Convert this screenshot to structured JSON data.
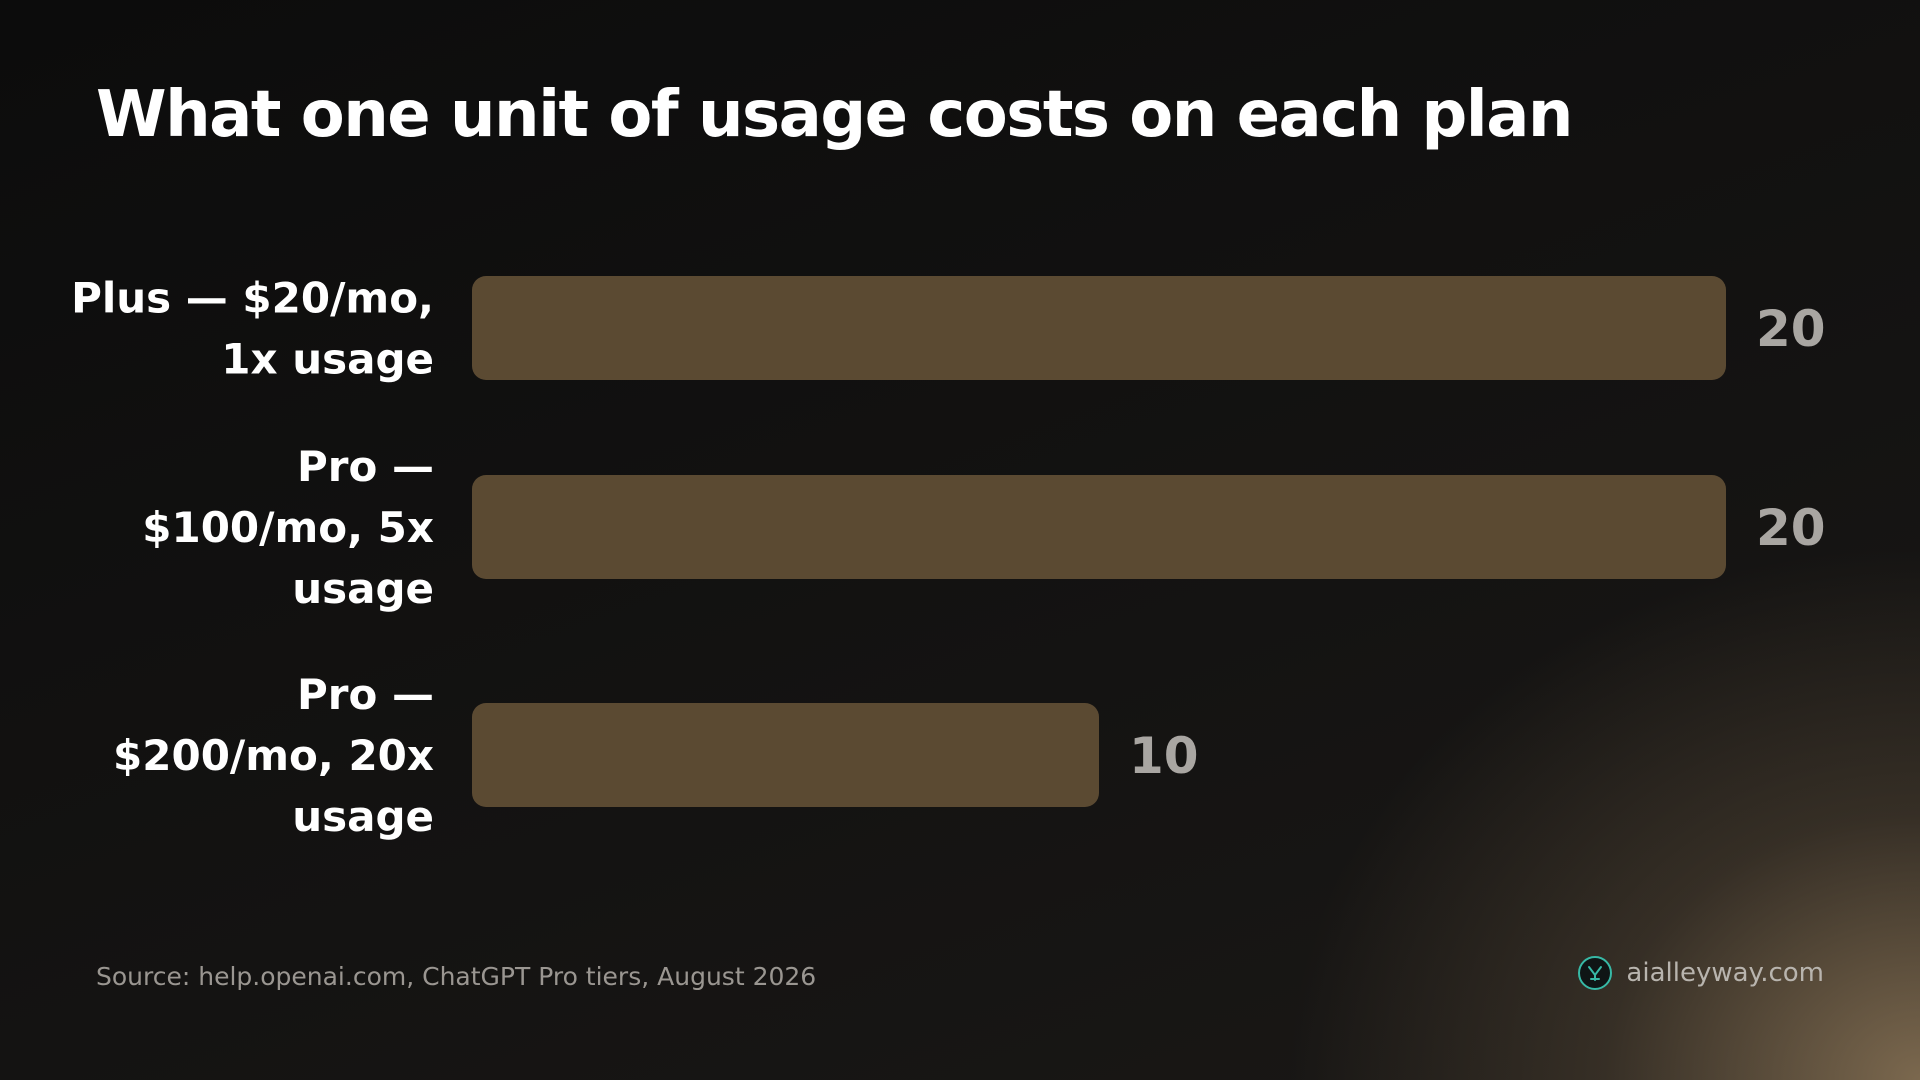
{
  "title": "What one unit of usage costs on each plan",
  "chart_data": {
    "type": "bar",
    "orientation": "horizontal",
    "categories": [
      [
        "Plus — $20/mo,",
        "1x usage"
      ],
      [
        "Pro —",
        "$100/mo, 5x",
        "usage"
      ],
      [
        "Pro —",
        "$200/mo, 20x",
        "usage"
      ]
    ],
    "values": [
      20,
      20,
      10
    ],
    "xlim": [
      0,
      20
    ],
    "grid": false,
    "bar_color": "#5b4a32"
  },
  "footer": {
    "source": "Source: help.openai.com, ChatGPT Pro tiers, August 2026",
    "brand": "aialleyway.com"
  },
  "colors": {
    "label_text": "#ffffff",
    "value_text": "#a9a6a2",
    "brand_accent": "#37b9a6"
  }
}
